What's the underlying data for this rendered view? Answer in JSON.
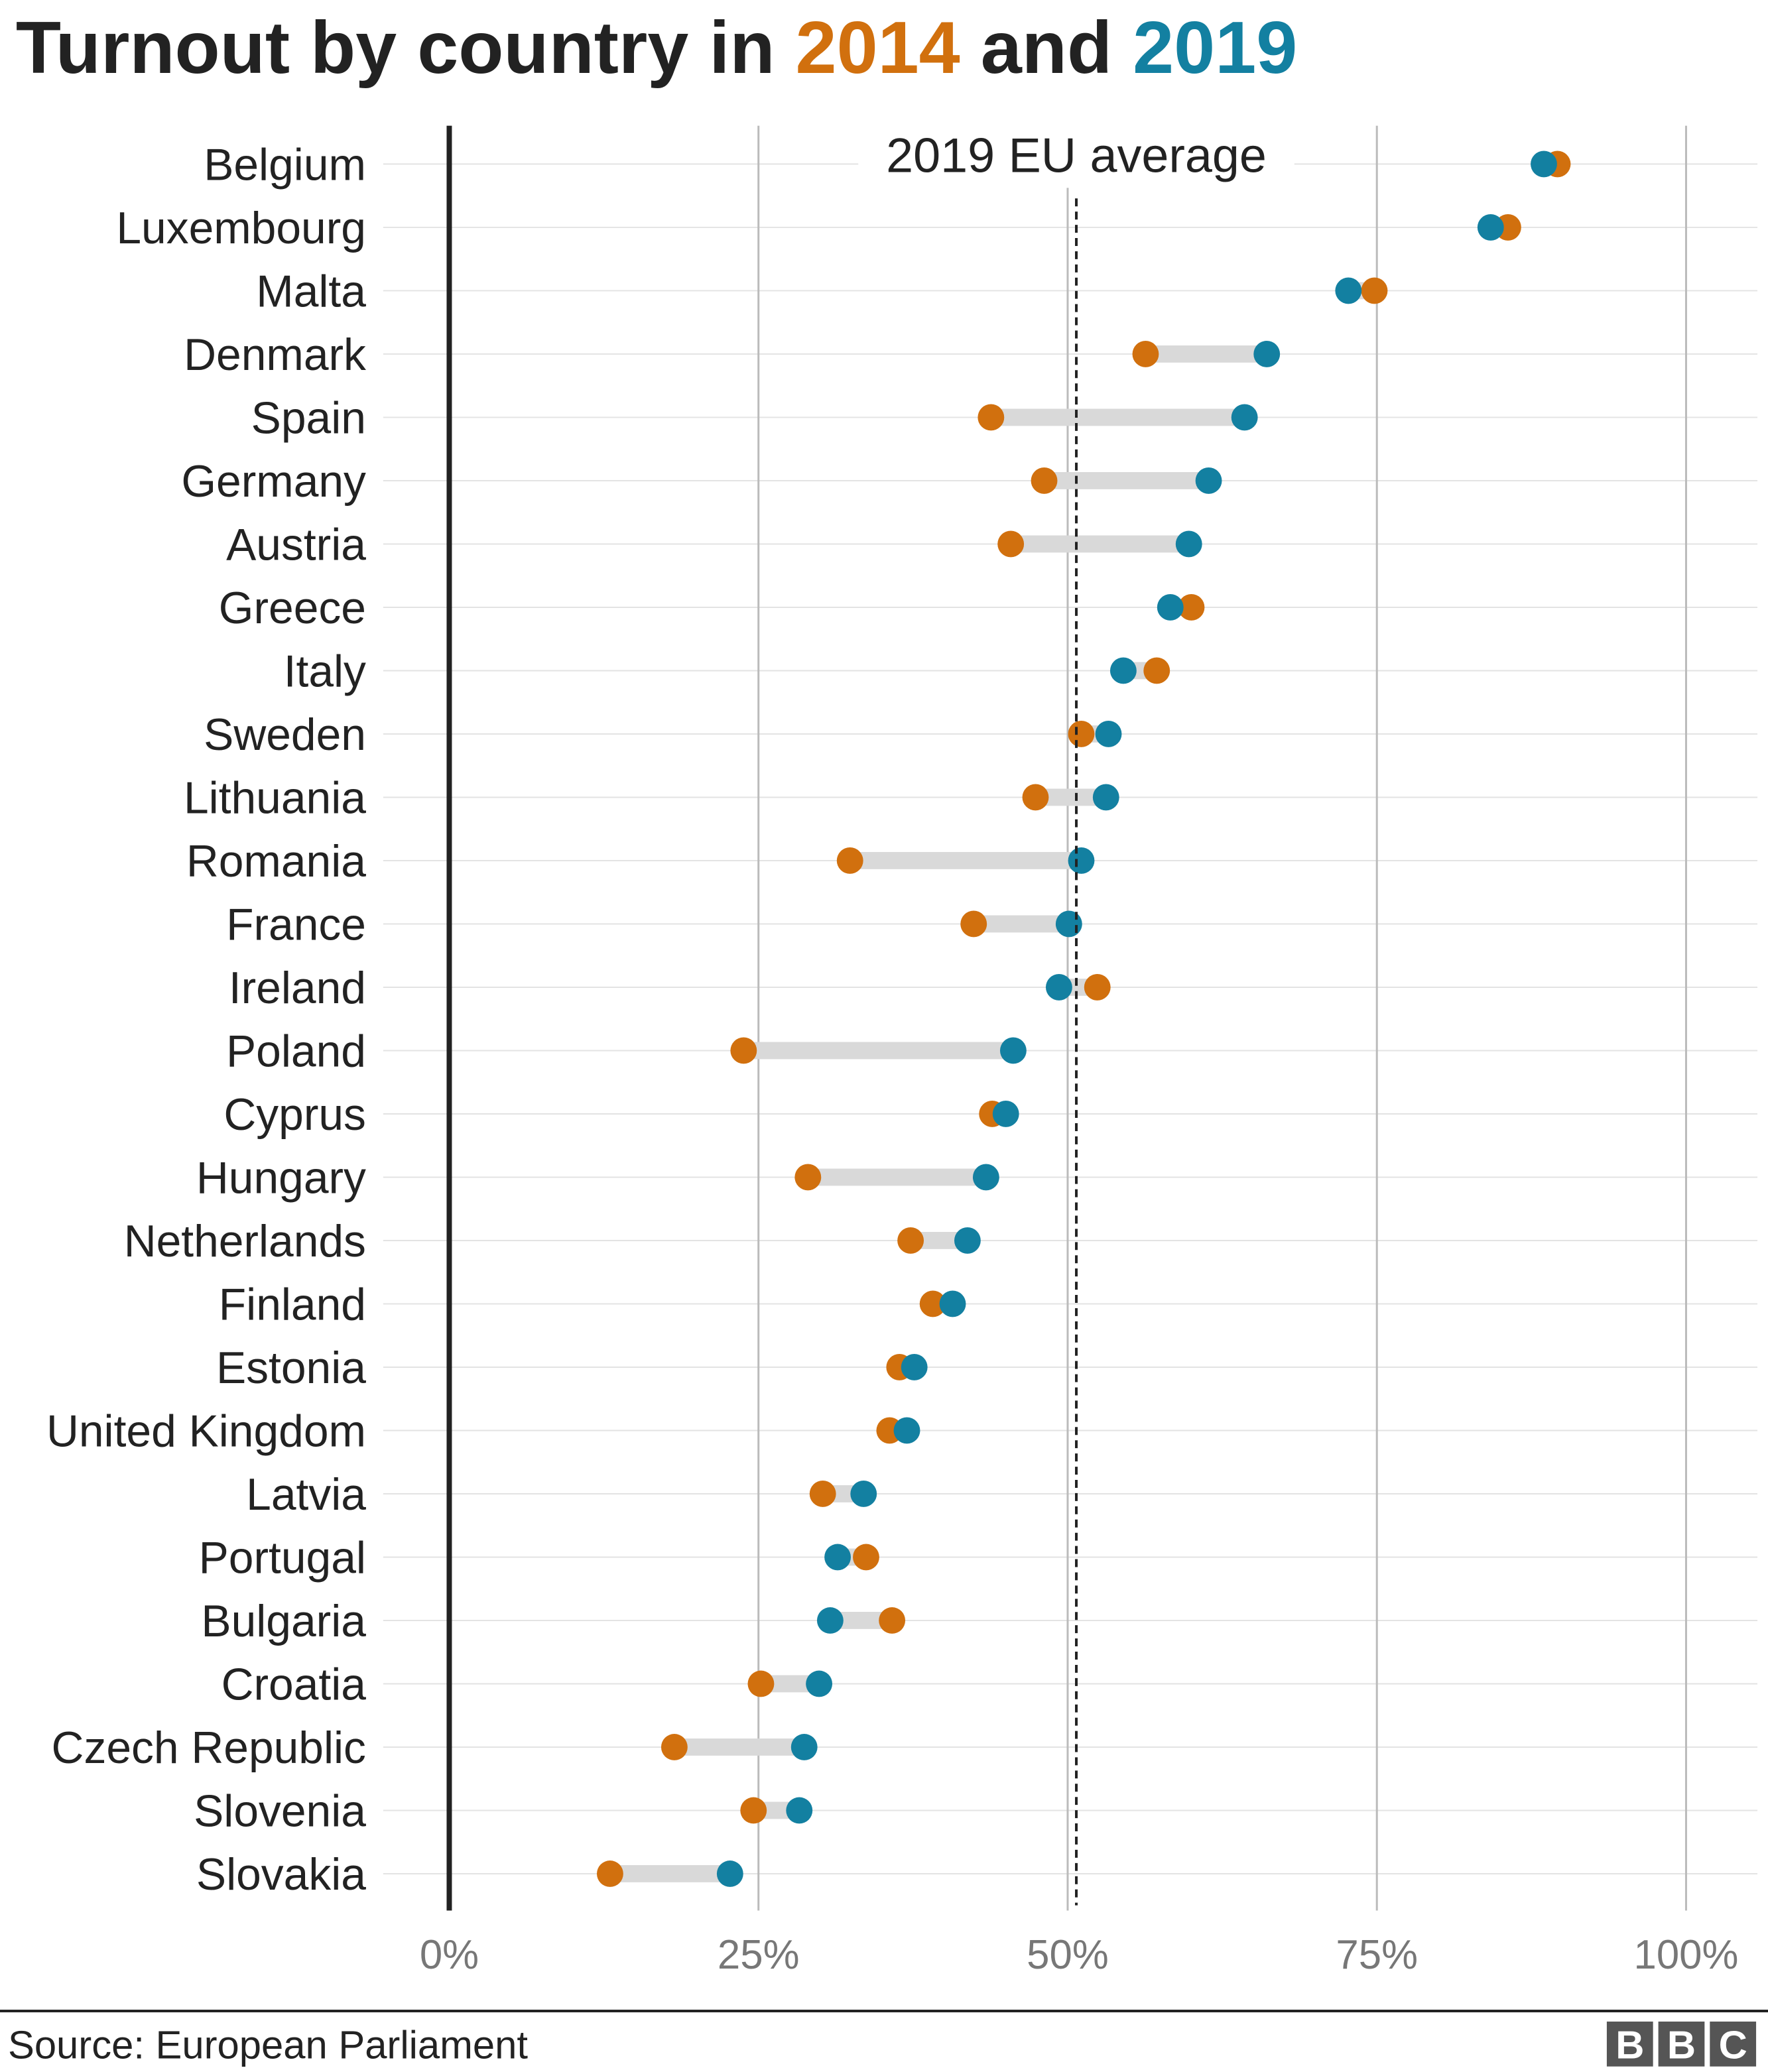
{
  "title": {
    "prefix": "Turnout by country in ",
    "year1": "2014",
    "middle": " and ",
    "year2": "2019"
  },
  "colors": {
    "y2014": "#D1700E",
    "y2019": "#1380A1",
    "connector": "#D9D9D9",
    "text": "#222222"
  },
  "source": "Source: European Parliament",
  "logo": {
    "letters": [
      "B",
      "B",
      "C"
    ]
  },
  "chart_data": {
    "type": "dumbbell",
    "title": "Turnout by country in 2014 and 2019",
    "xlim": [
      0,
      100
    ],
    "x_ticks": [
      "0%",
      "25%",
      "50%",
      "75%",
      "100%"
    ],
    "x_tick_values": [
      0,
      25,
      50,
      75,
      100
    ],
    "reference_line": {
      "label": "2019 EU average",
      "value": 50.7
    },
    "series": [
      {
        "name": "2014"
      },
      {
        "name": "2019"
      }
    ],
    "rows": [
      {
        "country": "Belgium",
        "y2014": 89.6,
        "y2019": 88.5
      },
      {
        "country": "Luxembourg",
        "y2014": 85.6,
        "y2019": 84.2
      },
      {
        "country": "Malta",
        "y2014": 74.8,
        "y2019": 72.7
      },
      {
        "country": "Denmark",
        "y2014": 56.3,
        "y2019": 66.1
      },
      {
        "country": "Spain",
        "y2014": 43.8,
        "y2019": 64.3
      },
      {
        "country": "Germany",
        "y2014": 48.1,
        "y2019": 61.4
      },
      {
        "country": "Austria",
        "y2014": 45.4,
        "y2019": 59.8
      },
      {
        "country": "Greece",
        "y2014": 60.0,
        "y2019": 58.3
      },
      {
        "country": "Italy",
        "y2014": 57.2,
        "y2019": 54.5
      },
      {
        "country": "Sweden",
        "y2014": 51.1,
        "y2019": 53.3
      },
      {
        "country": "Lithuania",
        "y2014": 47.4,
        "y2019": 53.1
      },
      {
        "country": "Romania",
        "y2014": 32.4,
        "y2019": 51.1
      },
      {
        "country": "France",
        "y2014": 42.4,
        "y2019": 50.1
      },
      {
        "country": "Ireland",
        "y2014": 52.4,
        "y2019": 49.3
      },
      {
        "country": "Poland",
        "y2014": 23.8,
        "y2019": 45.6
      },
      {
        "country": "Cyprus",
        "y2014": 43.9,
        "y2019": 45.0
      },
      {
        "country": "Hungary",
        "y2014": 29.0,
        "y2019": 43.4
      },
      {
        "country": "Netherlands",
        "y2014": 37.3,
        "y2019": 41.9
      },
      {
        "country": "Finland",
        "y2014": 39.1,
        "y2019": 40.7
      },
      {
        "country": "Estonia",
        "y2014": 36.4,
        "y2019": 37.6
      },
      {
        "country": "United Kingdom",
        "y2014": 35.6,
        "y2019": 37.0
      },
      {
        "country": "Latvia",
        "y2014": 30.2,
        "y2019": 33.5
      },
      {
        "country": "Portugal",
        "y2014": 33.7,
        "y2019": 31.4
      },
      {
        "country": "Bulgaria",
        "y2014": 35.8,
        "y2019": 30.8
      },
      {
        "country": "Croatia",
        "y2014": 25.2,
        "y2019": 29.9
      },
      {
        "country": "Czech Republic",
        "y2014": 18.2,
        "y2019": 28.7
      },
      {
        "country": "Slovenia",
        "y2014": 24.6,
        "y2019": 28.3
      },
      {
        "country": "Slovakia",
        "y2014": 13.0,
        "y2019": 22.7
      }
    ]
  }
}
